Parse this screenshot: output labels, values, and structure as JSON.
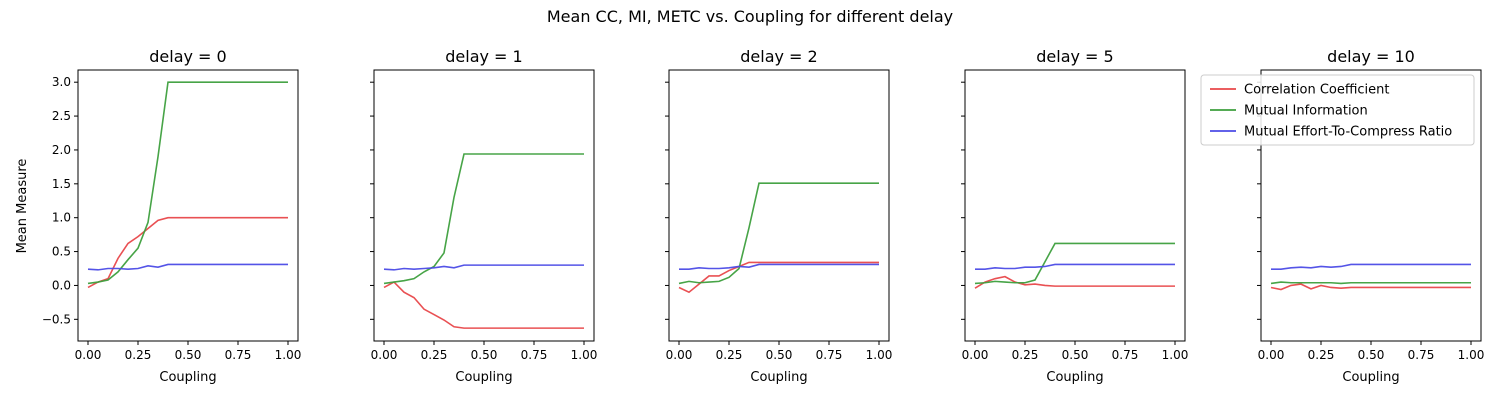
{
  "figure": {
    "title": "Mean CC, MI, METC vs. Coupling for different delay",
    "shared_ylabel": "Mean Measure"
  },
  "chart_data": [
    {
      "type": "line",
      "title": "delay = 0",
      "xlabel": "Coupling",
      "ylabel": "Mean Measure",
      "xlim": [
        -0.05,
        1.05
      ],
      "ylim": [
        -0.82,
        3.18
      ],
      "xticks": [
        "0.00",
        "0.25",
        "0.50",
        "0.75",
        "1.00"
      ],
      "yticks": [
        "−0.5",
        "0.0",
        "0.5",
        "1.0",
        "1.5",
        "2.0",
        "2.5",
        "3.0"
      ],
      "grid": false,
      "x": [
        0.0,
        0.05,
        0.1,
        0.15,
        0.2,
        0.25,
        0.3,
        0.35,
        0.4,
        0.45,
        0.5,
        0.55,
        0.6,
        0.65,
        0.7,
        0.75,
        0.8,
        0.85,
        0.9,
        0.95,
        1.0
      ],
      "series": [
        {
          "name": "Correlation Coefficient",
          "color": "#e8474a",
          "values": [
            -0.03,
            0.05,
            0.1,
            0.4,
            0.62,
            0.72,
            0.84,
            0.96,
            1.0,
            1.0,
            1.0,
            1.0,
            1.0,
            1.0,
            1.0,
            1.0,
            1.0,
            1.0,
            1.0,
            1.0,
            1.0
          ]
        },
        {
          "name": "Mutual Information",
          "color": "#3d9f3d",
          "values": [
            0.03,
            0.05,
            0.08,
            0.2,
            0.38,
            0.55,
            0.93,
            1.9,
            3.0,
            3.0,
            3.0,
            3.0,
            3.0,
            3.0,
            3.0,
            3.0,
            3.0,
            3.0,
            3.0,
            3.0,
            3.0
          ]
        },
        {
          "name": "Mutual Effort-To-Compress Ratio",
          "color": "#4b4be6",
          "values": [
            0.24,
            0.23,
            0.25,
            0.25,
            0.24,
            0.25,
            0.29,
            0.27,
            0.31,
            0.31,
            0.31,
            0.31,
            0.31,
            0.31,
            0.31,
            0.31,
            0.31,
            0.31,
            0.31,
            0.31,
            0.31
          ]
        }
      ]
    },
    {
      "type": "line",
      "title": "delay = 1",
      "xlabel": "Coupling",
      "xlim": [
        -0.05,
        1.05
      ],
      "ylim": [
        -0.82,
        3.18
      ],
      "xticks": [
        "0.00",
        "0.25",
        "0.50",
        "0.75",
        "1.00"
      ],
      "grid": false,
      "x": [
        0.0,
        0.05,
        0.1,
        0.15,
        0.2,
        0.25,
        0.3,
        0.35,
        0.4,
        0.45,
        0.5,
        0.55,
        0.6,
        0.65,
        0.7,
        0.75,
        0.8,
        0.85,
        0.9,
        0.95,
        1.0
      ],
      "series": [
        {
          "name": "Correlation Coefficient",
          "color": "#e8474a",
          "values": [
            -0.03,
            0.05,
            -0.1,
            -0.18,
            -0.35,
            -0.43,
            -0.51,
            -0.61,
            -0.63,
            -0.63,
            -0.63,
            -0.63,
            -0.63,
            -0.63,
            -0.63,
            -0.63,
            -0.63,
            -0.63,
            -0.63,
            -0.63,
            -0.63
          ]
        },
        {
          "name": "Mutual Information",
          "color": "#3d9f3d",
          "values": [
            0.03,
            0.05,
            0.07,
            0.1,
            0.2,
            0.28,
            0.48,
            1.3,
            1.94,
            1.94,
            1.94,
            1.94,
            1.94,
            1.94,
            1.94,
            1.94,
            1.94,
            1.94,
            1.94,
            1.94,
            1.94
          ]
        },
        {
          "name": "Mutual Effort-To-Compress Ratio",
          "color": "#4b4be6",
          "values": [
            0.24,
            0.23,
            0.25,
            0.24,
            0.25,
            0.26,
            0.28,
            0.26,
            0.3,
            0.3,
            0.3,
            0.3,
            0.3,
            0.3,
            0.3,
            0.3,
            0.3,
            0.3,
            0.3,
            0.3,
            0.3
          ]
        }
      ]
    },
    {
      "type": "line",
      "title": "delay = 2",
      "xlabel": "Coupling",
      "xlim": [
        -0.05,
        1.05
      ],
      "ylim": [
        -0.82,
        3.18
      ],
      "xticks": [
        "0.00",
        "0.25",
        "0.50",
        "0.75",
        "1.00"
      ],
      "grid": false,
      "x": [
        0.0,
        0.05,
        0.1,
        0.15,
        0.2,
        0.25,
        0.3,
        0.35,
        0.4,
        0.45,
        0.5,
        0.55,
        0.6,
        0.65,
        0.7,
        0.75,
        0.8,
        0.85,
        0.9,
        0.95,
        1.0
      ],
      "series": [
        {
          "name": "Correlation Coefficient",
          "color": "#e8474a",
          "values": [
            -0.03,
            -0.1,
            0.02,
            0.14,
            0.14,
            0.22,
            0.28,
            0.34,
            0.34,
            0.34,
            0.34,
            0.34,
            0.34,
            0.34,
            0.34,
            0.34,
            0.34,
            0.34,
            0.34,
            0.34,
            0.34
          ]
        },
        {
          "name": "Mutual Information",
          "color": "#3d9f3d",
          "values": [
            0.03,
            0.06,
            0.04,
            0.05,
            0.06,
            0.12,
            0.25,
            0.85,
            1.51,
            1.51,
            1.51,
            1.51,
            1.51,
            1.51,
            1.51,
            1.51,
            1.51,
            1.51,
            1.51,
            1.51,
            1.51
          ]
        },
        {
          "name": "Mutual Effort-To-Compress Ratio",
          "color": "#4b4be6",
          "values": [
            0.24,
            0.24,
            0.26,
            0.25,
            0.25,
            0.26,
            0.28,
            0.27,
            0.31,
            0.31,
            0.31,
            0.31,
            0.31,
            0.31,
            0.31,
            0.31,
            0.31,
            0.31,
            0.31,
            0.31,
            0.31
          ]
        }
      ]
    },
    {
      "type": "line",
      "title": "delay = 5",
      "xlabel": "Coupling",
      "xlim": [
        -0.05,
        1.05
      ],
      "ylim": [
        -0.82,
        3.18
      ],
      "xticks": [
        "0.00",
        "0.25",
        "0.50",
        "0.75",
        "1.00"
      ],
      "grid": false,
      "x": [
        0.0,
        0.05,
        0.1,
        0.15,
        0.2,
        0.25,
        0.3,
        0.35,
        0.4,
        0.45,
        0.5,
        0.55,
        0.6,
        0.65,
        0.7,
        0.75,
        0.8,
        0.85,
        0.9,
        0.95,
        1.0
      ],
      "series": [
        {
          "name": "Correlation Coefficient",
          "color": "#e8474a",
          "values": [
            -0.04,
            0.05,
            0.1,
            0.13,
            0.05,
            0.01,
            0.02,
            0.0,
            -0.01,
            -0.01,
            -0.01,
            -0.01,
            -0.01,
            -0.01,
            -0.01,
            -0.01,
            -0.01,
            -0.01,
            -0.01,
            -0.01,
            -0.01
          ]
        },
        {
          "name": "Mutual Information",
          "color": "#3d9f3d",
          "values": [
            0.03,
            0.04,
            0.06,
            0.05,
            0.04,
            0.04,
            0.08,
            0.35,
            0.62,
            0.62,
            0.62,
            0.62,
            0.62,
            0.62,
            0.62,
            0.62,
            0.62,
            0.62,
            0.62,
            0.62,
            0.62
          ]
        },
        {
          "name": "Mutual Effort-To-Compress Ratio",
          "color": "#4b4be6",
          "values": [
            0.24,
            0.24,
            0.26,
            0.25,
            0.25,
            0.27,
            0.27,
            0.28,
            0.31,
            0.31,
            0.31,
            0.31,
            0.31,
            0.31,
            0.31,
            0.31,
            0.31,
            0.31,
            0.31,
            0.31,
            0.31
          ]
        }
      ]
    },
    {
      "type": "line",
      "title": "delay = 10",
      "xlabel": "Coupling",
      "xlim": [
        -0.05,
        1.05
      ],
      "ylim": [
        -0.82,
        3.18
      ],
      "xticks": [
        "0.00",
        "0.25",
        "0.50",
        "0.75",
        "1.00"
      ],
      "grid": false,
      "legend": {
        "placement": "upper-left-outside",
        "entries": [
          "Correlation Coefficient",
          "Mutual Information",
          "Mutual Effort-To-Compress Ratio"
        ]
      },
      "x": [
        0.0,
        0.05,
        0.1,
        0.15,
        0.2,
        0.25,
        0.3,
        0.35,
        0.4,
        0.45,
        0.5,
        0.55,
        0.6,
        0.65,
        0.7,
        0.75,
        0.8,
        0.85,
        0.9,
        0.95,
        1.0
      ],
      "series": [
        {
          "name": "Correlation Coefficient",
          "color": "#e8474a",
          "values": [
            -0.03,
            -0.06,
            0.0,
            0.02,
            -0.05,
            0.0,
            -0.03,
            -0.04,
            -0.03,
            -0.03,
            -0.03,
            -0.03,
            -0.03,
            -0.03,
            -0.03,
            -0.03,
            -0.03,
            -0.03,
            -0.03,
            -0.03,
            -0.03
          ]
        },
        {
          "name": "Mutual Information",
          "color": "#3d9f3d",
          "values": [
            0.03,
            0.05,
            0.04,
            0.04,
            0.04,
            0.04,
            0.04,
            0.03,
            0.04,
            0.04,
            0.04,
            0.04,
            0.04,
            0.04,
            0.04,
            0.04,
            0.04,
            0.04,
            0.04,
            0.04,
            0.04
          ]
        },
        {
          "name": "Mutual Effort-To-Compress Ratio",
          "color": "#4b4be6",
          "values": [
            0.24,
            0.24,
            0.26,
            0.27,
            0.26,
            0.28,
            0.27,
            0.28,
            0.31,
            0.31,
            0.31,
            0.31,
            0.31,
            0.31,
            0.31,
            0.31,
            0.31,
            0.31,
            0.31,
            0.31,
            0.31
          ]
        }
      ]
    }
  ]
}
